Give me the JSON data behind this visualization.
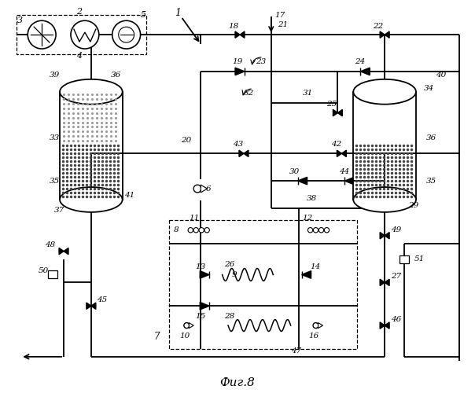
{
  "bg_color": "#ffffff",
  "line_color": "#000000",
  "label_color": "#000000",
  "title": "Фиг.8",
  "title_fontsize": 11,
  "label_fontsize": 7.5
}
